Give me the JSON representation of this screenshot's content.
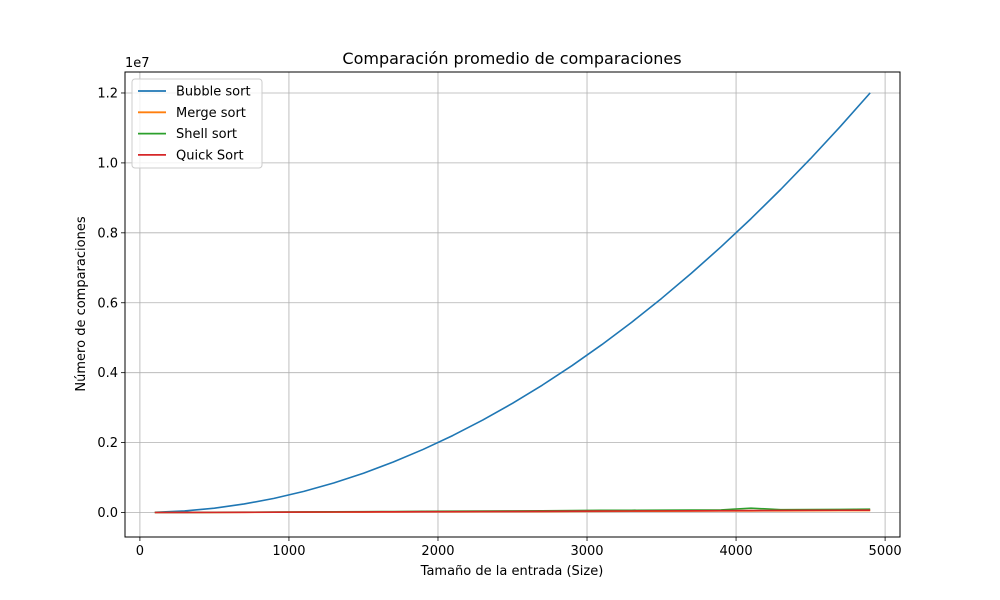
{
  "chart_data": {
    "type": "line",
    "title": "Comparación promedio de comparaciones",
    "xlabel": "Tamaño de la entrada (Size)",
    "ylabel": "Número de comparaciones",
    "y_offset_text": "1e7",
    "xlim": [
      -100,
      5100
    ],
    "ylim": [
      -700000,
      12600000
    ],
    "xticks": [
      0,
      1000,
      2000,
      3000,
      4000,
      5000
    ],
    "yticks": [
      0,
      2000000,
      4000000,
      6000000,
      8000000,
      10000000,
      12000000
    ],
    "ytick_labels": [
      "0.0",
      "0.2",
      "0.4",
      "0.6",
      "0.8",
      "1.0",
      "1.2"
    ],
    "grid": true,
    "legend_position": "upper-left",
    "x": [
      100,
      300,
      500,
      700,
      900,
      1100,
      1300,
      1500,
      1700,
      1900,
      2100,
      2300,
      2500,
      2700,
      2900,
      3100,
      3300,
      3500,
      3700,
      3900,
      4100,
      4300,
      4500,
      4700,
      4900
    ],
    "series": [
      {
        "name": "Bubble sort",
        "color": "#1f77b4",
        "values": [
          4950,
          44850,
          124750,
          244650,
          404550,
          604450,
          844350,
          1124250,
          1444150,
          1804050,
          2203950,
          2643850,
          3123750,
          3643650,
          4203550,
          4803450,
          5443350,
          6123250,
          6843150,
          7603050,
          8402950,
          9242850,
          10122750,
          11042650,
          12002550
        ]
      },
      {
        "name": "Merge sort",
        "color": "#ff7f0e",
        "values": [
          540,
          2000,
          3850,
          5800,
          7900,
          10100,
          12300,
          14500,
          16800,
          19200,
          21500,
          24000,
          26300,
          28800,
          31200,
          33800,
          36200,
          38800,
          41300,
          43900,
          46400,
          49000,
          51600,
          54100,
          56800
        ]
      },
      {
        "name": "Shell sort",
        "color": "#2ca02c",
        "values": [
          900,
          3500,
          6500,
          10000,
          13500,
          17500,
          21000,
          25500,
          29000,
          34000,
          38000,
          42000,
          47000,
          51000,
          56000,
          62000,
          65000,
          68000,
          72000,
          76000,
          125000,
          82000,
          86000,
          90000,
          95000
        ]
      },
      {
        "name": "Quick Sort",
        "color": "#d62728",
        "values": [
          650,
          2400,
          4600,
          7000,
          9500,
          12200,
          14800,
          17600,
          20300,
          23200,
          26000,
          29000,
          32000,
          35000,
          38000,
          41000,
          44000,
          47000,
          50000,
          53000,
          56000,
          59000,
          62000,
          65000,
          68000
        ]
      }
    ]
  }
}
